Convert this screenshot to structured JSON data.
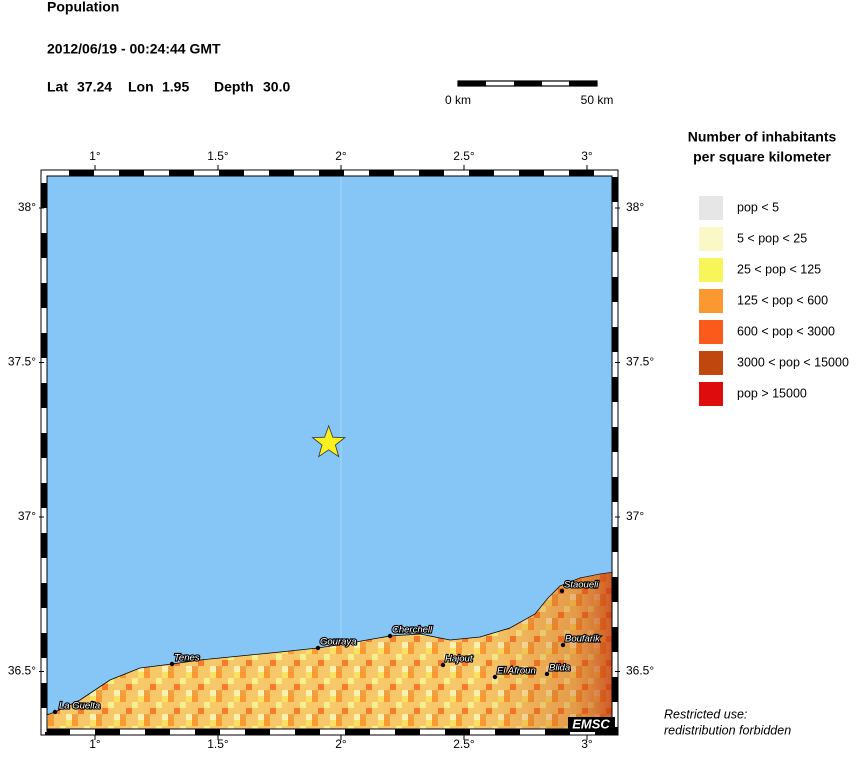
{
  "header": {
    "title": "Population",
    "datetime": "2012/06/19 - 00:24:44 GMT",
    "lat": {
      "label": "Lat",
      "value": 37.24
    },
    "lon": {
      "label": "Lon",
      "value": 1.95
    },
    "depth": {
      "label": "Depth",
      "value": "30.0"
    }
  },
  "scale_bar": {
    "start": "0 km",
    "end": "50 km"
  },
  "map": {
    "xticks": [
      {
        "value": 1,
        "label": "1°"
      },
      {
        "value": 1.5,
        "label": "1.5°"
      },
      {
        "value": 2,
        "label": "2°"
      },
      {
        "value": 2.5,
        "label": "2.5°"
      },
      {
        "value": 3,
        "label": "3°"
      }
    ],
    "yticks": [
      {
        "value": 38,
        "label": "38°"
      },
      {
        "value": 37.5,
        "label": "37.5°"
      },
      {
        "value": 37,
        "label": "37°"
      },
      {
        "value": 36.5,
        "label": "36.5°"
      }
    ],
    "cities": [
      "La Guelta",
      "Tenes",
      "Gouraya",
      "Cherchell",
      "Hajout",
      "El Afroun",
      "Blida",
      "Boufarik",
      "Staoueli"
    ],
    "credit": "EMSC"
  },
  "legend": {
    "title": [
      "Number of inhabitants",
      "per square kilometer"
    ],
    "items": [
      {
        "label": "pop < 5",
        "color": "#e6e6e6"
      },
      {
        "label": "5 < pop < 25",
        "color": "#fbf8c8"
      },
      {
        "label": "25 < pop < 125",
        "color": "#f8f55a"
      },
      {
        "label": "125 < pop < 600",
        "color": "#fb9830"
      },
      {
        "label": "600 < pop < 3000",
        "color": "#fb5a1a"
      },
      {
        "label": "3000 < pop < 15000",
        "color": "#c0480e"
      },
      {
        "label": "pop > 15000",
        "color": "#de0c0c"
      }
    ]
  },
  "footer": [
    "Restricted use:",
    "redistribution forbidden"
  ]
}
